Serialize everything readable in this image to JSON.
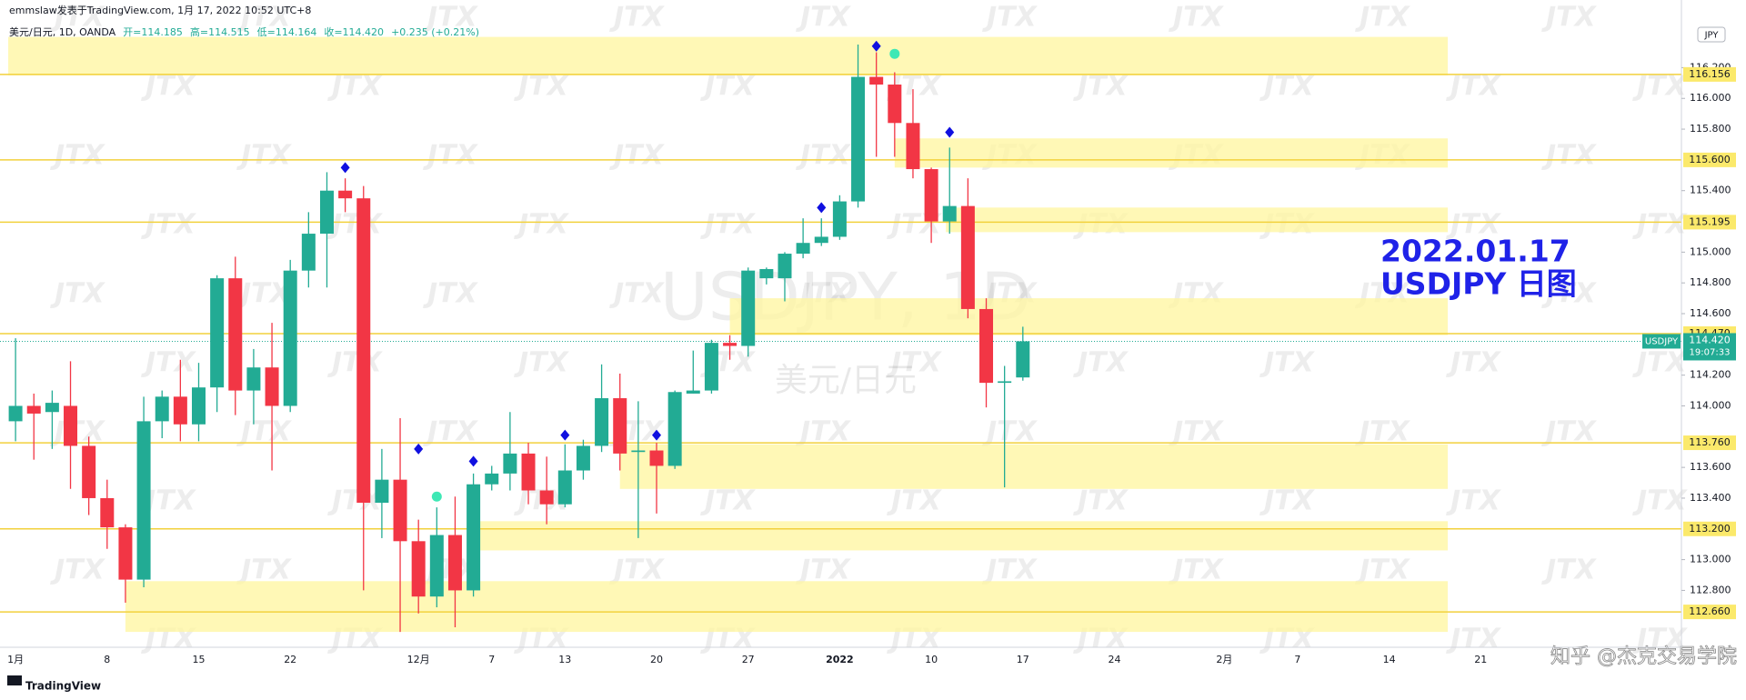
{
  "header": {
    "byline": "emmslaw发表于TradingView.com, 1月 17, 2022 10:52 UTC+8",
    "symbol": "美元/日元, 1D, OANDA",
    "quote": [
      "开=114.185",
      "高=114.515",
      "低=114.164",
      "收=114.420",
      "+0.235 (+0.21%)"
    ]
  },
  "footer": {
    "logo": "TradingView",
    "credit": "知乎 @杰克交易学院"
  },
  "chart_data": {
    "type": "candlestick",
    "watermark": "USDJPY, 1D",
    "watermark_sub": "美元/日元",
    "brand_mark": "JTX",
    "annotation": [
      "2022.01.17",
      "USDJPY 日图"
    ],
    "currency": "JPY",
    "categories": [
      "1月",
      null,
      null,
      null,
      null,
      "8",
      null,
      null,
      null,
      null,
      "15",
      null,
      null,
      null,
      null,
      "22",
      null,
      null,
      null,
      null,
      null,
      null,
      "12月",
      null,
      null,
      null,
      "7",
      null,
      null,
      null,
      "13",
      null,
      null,
      null,
      null,
      "20",
      null,
      null,
      null,
      null,
      "27",
      null,
      null,
      null,
      null,
      "2022",
      null,
      null,
      null,
      null,
      "10",
      null,
      null,
      null,
      null,
      "17",
      null,
      null,
      null,
      null,
      "24",
      null,
      null,
      null,
      null,
      null,
      "2月",
      null,
      null,
      null,
      "7",
      null,
      null,
      null,
      null,
      "14",
      null,
      null,
      null,
      null,
      "21"
    ],
    "open": [
      113.9,
      114.0,
      113.96,
      114.0,
      113.74,
      113.4,
      113.21,
      112.87,
      113.9,
      114.06,
      113.88,
      114.12,
      114.83,
      114.1,
      114.25,
      114.0,
      114.88,
      115.12,
      115.4,
      115.35,
      113.37,
      113.52,
      113.12,
      112.76,
      113.16,
      112.8,
      113.49,
      113.56,
      113.69,
      113.45,
      113.36,
      113.58,
      113.74,
      114.05,
      113.7,
      113.71,
      113.61,
      114.08,
      114.1,
      114.41,
      114.39,
      114.83,
      114.83,
      114.99,
      115.06,
      115.1,
      115.33,
      116.14,
      116.09,
      115.84,
      115.54,
      115.2,
      115.3,
      114.63,
      114.15,
      114.185,
      null,
      null,
      null,
      null,
      null,
      null,
      null,
      null,
      null,
      null,
      null,
      null,
      null,
      null,
      null,
      null,
      null,
      null,
      null,
      null,
      null,
      null,
      null,
      null,
      null
    ],
    "high": [
      114.44,
      114.08,
      114.1,
      114.29,
      113.8,
      113.52,
      113.23,
      114.06,
      114.1,
      114.3,
      114.28,
      114.85,
      114.97,
      114.37,
      114.54,
      114.95,
      115.26,
      115.52,
      115.48,
      115.43,
      113.72,
      113.92,
      113.26,
      113.34,
      113.41,
      113.56,
      113.61,
      113.96,
      113.76,
      113.67,
      113.75,
      113.78,
      114.27,
      114.21,
      114.03,
      113.76,
      114.1,
      114.36,
      114.43,
      114.46,
      114.9,
      114.9,
      115.0,
      115.22,
      115.22,
      115.37,
      116.35,
      116.3,
      116.17,
      116.06,
      115.55,
      115.68,
      115.48,
      114.7,
      114.26,
      114.515,
      null,
      null,
      null,
      null,
      null,
      null,
      null,
      null,
      null,
      null,
      null,
      null,
      null,
      null,
      null,
      null,
      null,
      null,
      null,
      null,
      null,
      null,
      null,
      null,
      null
    ],
    "low": [
      113.77,
      113.65,
      113.72,
      113.46,
      113.29,
      113.07,
      112.72,
      112.82,
      113.79,
      113.77,
      113.77,
      113.96,
      113.94,
      113.88,
      113.58,
      113.96,
      114.77,
      114.77,
      115.26,
      112.8,
      113.14,
      112.53,
      112.65,
      112.69,
      112.56,
      112.76,
      113.45,
      113.45,
      113.36,
      113.23,
      113.34,
      113.52,
      113.7,
      113.58,
      113.14,
      113.3,
      113.59,
      114.08,
      114.08,
      114.3,
      114.32,
      114.79,
      114.68,
      114.96,
      115.04,
      115.08,
      115.29,
      115.62,
      115.62,
      115.48,
      115.06,
      115.12,
      114.57,
      113.99,
      113.47,
      114.164,
      null,
      null,
      null,
      null,
      null,
      null,
      null,
      null,
      null,
      null,
      null,
      null,
      null,
      null,
      null,
      null,
      null,
      null,
      null,
      null,
      null,
      null,
      null,
      null,
      null
    ],
    "close": [
      114.0,
      113.95,
      114.02,
      113.74,
      113.4,
      113.21,
      112.87,
      113.9,
      114.06,
      113.88,
      114.12,
      114.83,
      114.1,
      114.25,
      114.0,
      114.88,
      115.12,
      115.4,
      115.35,
      113.37,
      113.52,
      113.12,
      112.76,
      113.16,
      112.8,
      113.49,
      113.56,
      113.69,
      113.45,
      113.36,
      113.58,
      113.74,
      114.05,
      113.69,
      113.71,
      113.61,
      114.09,
      114.1,
      114.41,
      114.39,
      114.88,
      114.89,
      114.99,
      115.06,
      115.1,
      115.33,
      116.14,
      116.09,
      115.84,
      115.54,
      115.2,
      115.3,
      114.63,
      114.15,
      114.16,
      114.42,
      null,
      null,
      null,
      null,
      null,
      null,
      null,
      null,
      null,
      null,
      null,
      null,
      null,
      null,
      null,
      null,
      null,
      null,
      null,
      null,
      null,
      null,
      null,
      null,
      null
    ],
    "up_color": "#22ab94",
    "down_color": "#f23645",
    "ylim": [
      112.43,
      116.64
    ],
    "yticks": [
      {
        "value": 116.2,
        "label": "116.200"
      },
      {
        "value": 116,
        "label": "116.000"
      },
      {
        "value": 115.8,
        "label": "115.800"
      },
      {
        "value": 115.4,
        "label": "115.400"
      },
      {
        "value": 115,
        "label": "115.000"
      },
      {
        "value": 114.8,
        "label": "114.800"
      },
      {
        "value": 114.6,
        "label": "114.600"
      },
      {
        "value": 114.2,
        "label": "114.200"
      },
      {
        "value": 114,
        "label": "114.000"
      },
      {
        "value": 113.6,
        "label": "113.600"
      },
      {
        "value": 113.4,
        "label": "113.400"
      },
      {
        "value": 113,
        "label": "113.000"
      },
      {
        "value": 112.8,
        "label": "112.800"
      }
    ],
    "grid": false,
    "levels": [
      116.156,
      {
        "value": 115.6,
        "label": "115.600"
      },
      115.195,
      {
        "value": 114.47,
        "label": "114.470"
      },
      {
        "value": 113.76,
        "label": "113.760"
      },
      {
        "value": 113.2,
        "label": "113.200"
      },
      {
        "value": 112.66,
        "label": "112.660"
      }
    ],
    "level_color": "#f2d13c",
    "zones": [
      {
        "start": -0.4,
        "end": 78.2,
        "low": 116.15,
        "high": 116.4
      },
      {
        "start": 48,
        "end": 78.2,
        "low": 115.55,
        "high": 115.74
      },
      {
        "start": 50.8,
        "end": 78.2,
        "low": 115.13,
        "high": 115.29
      },
      {
        "start": 39,
        "end": 78.2,
        "low": 114.46,
        "high": 114.7
      },
      {
        "start": 33,
        "end": 78.2,
        "low": 113.46,
        "high": 113.75
      },
      {
        "start": 25,
        "end": 78.2,
        "low": 113.06,
        "high": 113.25
      },
      {
        "start": 6,
        "end": 78.2,
        "low": 112.53,
        "high": 112.86
      }
    ],
    "zone_color": "#fff59d",
    "diamonds": [
      {
        "index": 18,
        "price": 115.55
      },
      {
        "index": 22,
        "price": 113.72
      },
      {
        "index": 25,
        "price": 113.64
      },
      {
        "index": 30,
        "price": 113.81
      },
      {
        "index": 35,
        "price": 113.81
      },
      {
        "index": 44,
        "price": 115.29
      },
      {
        "index": 47,
        "price": 116.34
      },
      {
        "index": 51,
        "price": 115.78
      }
    ],
    "circles": [
      {
        "index": 23,
        "price": 113.41
      },
      {
        "index": 48,
        "price": 116.29
      }
    ],
    "last_price": {
      "value": 114.42,
      "label": "114.420"
    },
    "countdown": "19:07:33",
    "symbol_tag": "USDJPY"
  }
}
